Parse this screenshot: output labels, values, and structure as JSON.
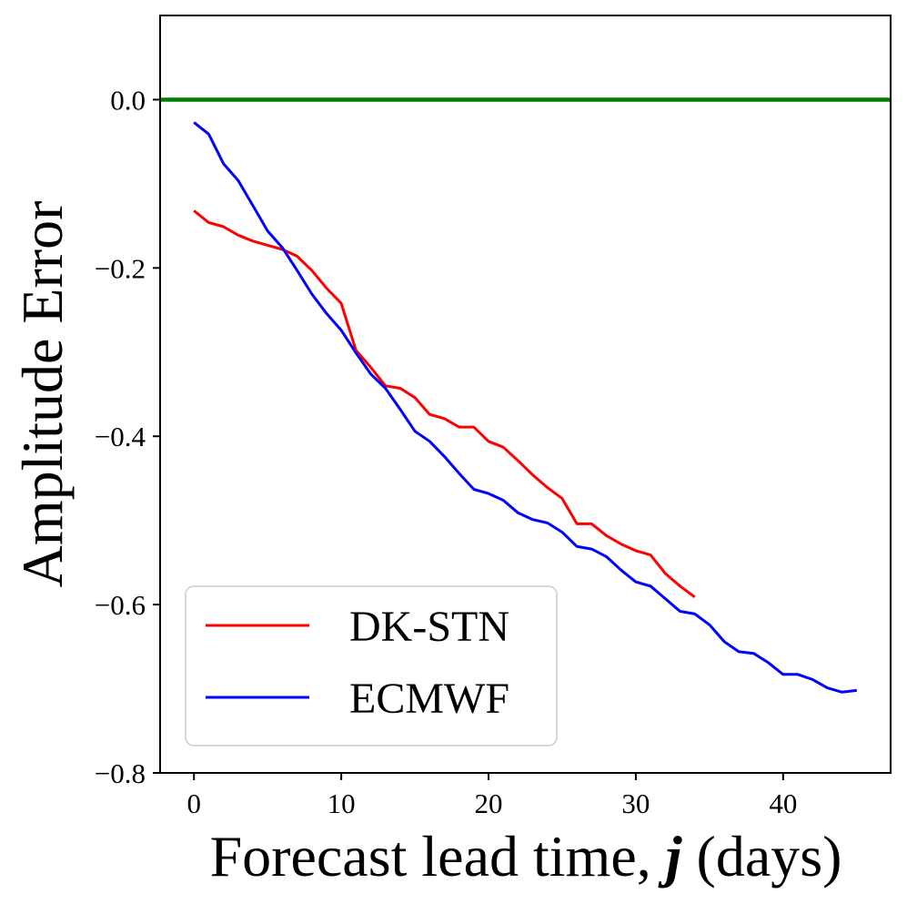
{
  "chart_data": {
    "type": "line",
    "title": "",
    "xlabel_prefix": "Forecast lead time, ",
    "xlabel_var": "j",
    "xlabel_suffix": " (days)",
    "ylabel": "Amplitude Error",
    "xlim": [
      -2.3,
      47.3
    ],
    "ylim": [
      -0.8,
      0.1
    ],
    "xticks": [
      0,
      10,
      20,
      30,
      40
    ],
    "xtick_labels": [
      "0",
      "10",
      "20",
      "30",
      "40"
    ],
    "yticks": [
      0.0,
      -0.2,
      -0.4,
      -0.6,
      -0.8
    ],
    "ytick_labels": [
      "0.0",
      "−0.2",
      "−0.4",
      "−0.6",
      "−0.8"
    ],
    "grid": false,
    "legend_position": "lower-left",
    "reference_line": {
      "y": 0.0,
      "color": "#008000"
    },
    "series": [
      {
        "name": "DK-STN",
        "color": "#ff0000",
        "x": [
          0,
          1,
          2,
          3,
          4,
          5,
          6,
          7,
          8,
          9,
          10,
          11,
          12,
          13,
          14,
          15,
          16,
          17,
          18,
          19,
          20,
          21,
          22,
          23,
          24,
          25,
          26,
          27,
          28,
          29,
          30,
          31,
          32,
          33,
          34
        ],
        "values": [
          -0.132,
          -0.146,
          -0.151,
          -0.161,
          -0.168,
          -0.173,
          -0.178,
          -0.186,
          -0.203,
          -0.224,
          -0.242,
          -0.298,
          -0.318,
          -0.34,
          -0.343,
          -0.354,
          -0.374,
          -0.379,
          -0.389,
          -0.389,
          -0.406,
          -0.413,
          -0.429,
          -0.446,
          -0.461,
          -0.474,
          -0.504,
          -0.504,
          -0.518,
          -0.528,
          -0.536,
          -0.541,
          -0.563,
          -0.578,
          -0.591
        ]
      },
      {
        "name": "ECMWF",
        "color": "#0000ff",
        "x": [
          0,
          1,
          2,
          3,
          4,
          5,
          6,
          7,
          8,
          9,
          10,
          11,
          12,
          13,
          14,
          15,
          16,
          17,
          18,
          19,
          20,
          21,
          22,
          23,
          24,
          25,
          26,
          27,
          28,
          29,
          30,
          31,
          32,
          33,
          34,
          35,
          36,
          37,
          38,
          39,
          40,
          41,
          42,
          43,
          44,
          45
        ],
        "values": [
          -0.027,
          -0.041,
          -0.076,
          -0.096,
          -0.126,
          -0.156,
          -0.176,
          -0.203,
          -0.231,
          -0.254,
          -0.274,
          -0.301,
          -0.326,
          -0.343,
          -0.368,
          -0.394,
          -0.406,
          -0.424,
          -0.444,
          -0.463,
          -0.468,
          -0.476,
          -0.491,
          -0.499,
          -0.503,
          -0.514,
          -0.531,
          -0.534,
          -0.543,
          -0.559,
          -0.573,
          -0.578,
          -0.593,
          -0.608,
          -0.611,
          -0.624,
          -0.644,
          -0.656,
          -0.658,
          -0.669,
          -0.683,
          -0.683,
          -0.689,
          -0.699,
          -0.704,
          -0.702
        ]
      }
    ]
  }
}
